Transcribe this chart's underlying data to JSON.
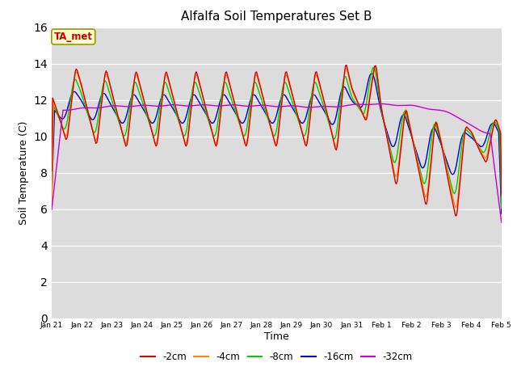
{
  "title": "Alfalfa Soil Temperatures Set B",
  "xlabel": "Time",
  "ylabel": "Soil Temperature (C)",
  "annotation": "TA_met",
  "ylim": [
    0,
    16
  ],
  "yticks": [
    0,
    2,
    4,
    6,
    8,
    10,
    12,
    14,
    16
  ],
  "colors": {
    "-2cm": "#dd0000",
    "-4cm": "#ff8800",
    "-8cm": "#00cc00",
    "-16cm": "#0000cc",
    "-32cm": "#cc00cc"
  },
  "legend_labels": [
    "-2cm",
    "-4cm",
    "-8cm",
    "-16cm",
    "-32cm"
  ],
  "bg_color": "#dcdcdc",
  "x_tick_labels": [
    "Jan 21",
    "Jan 22",
    "Jan 23",
    "Jan 24",
    "Jan 25",
    "Jan 26",
    "Jan 27",
    "Jan 28",
    "Jan 29",
    "Jan 30",
    "Jan 31",
    "Feb 1",
    "Feb 2",
    "Feb 3",
    "Feb 4",
    "Feb 5"
  ]
}
